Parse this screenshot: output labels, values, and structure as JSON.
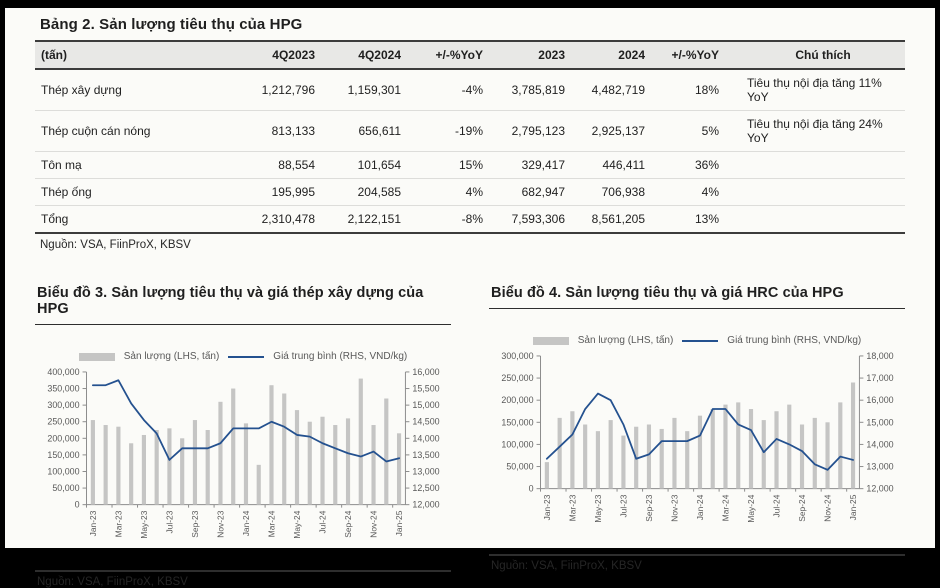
{
  "colors": {
    "bar": "#c5c5c4",
    "line": "#24518f",
    "axis": "#8c8c8c",
    "axis_text": "#595959",
    "page_bg": "#fbfbf8",
    "header_bg": "#e8e8e6"
  },
  "table_section": {
    "title": "Bảng 2. Sản lượng tiêu thụ của HPG",
    "source": "Nguồn: VSA, FiinProX, KBSV",
    "columns": [
      "(tấn)",
      "4Q2023",
      "4Q2024",
      "+/-%YoY",
      "2023",
      "2024",
      "+/-%YoY",
      "Chú thích"
    ],
    "rows": [
      [
        "Thép xây dựng",
        "1,212,796",
        "1,159,301",
        "-4%",
        "3,785,819",
        "4,482,719",
        "18%",
        "Tiêu thụ nội địa tăng 11% YoY"
      ],
      [
        "Thép cuộn cán nóng",
        "813,133",
        "656,611",
        "-19%",
        "2,795,123",
        "2,925,137",
        "5%",
        "Tiêu thụ nội địa tăng 24% YoY"
      ],
      [
        "Tôn mạ",
        "88,554",
        "101,654",
        "15%",
        "329,417",
        "446,411",
        "36%",
        ""
      ],
      [
        "Thép ống",
        "195,995",
        "204,585",
        "4%",
        "682,947",
        "706,938",
        "4%",
        ""
      ],
      [
        "Tổng",
        "2,310,478",
        "2,122,151",
        "-8%",
        "7,593,306",
        "8,561,205",
        "13%",
        ""
      ]
    ]
  },
  "chart_data": [
    {
      "type": "combo",
      "title": "Biểu đồ 3. Sản lượng tiêu thụ và giá thép xây dựng của HPG",
      "source": "Nguồn: VSA, FiinProX, KBSV",
      "legend_position": "top",
      "grid": false,
      "x": [
        "Jan-23",
        "Feb-23",
        "Mar-23",
        "Apr-23",
        "May-23",
        "Jun-23",
        "Jul-23",
        "Aug-23",
        "Sep-23",
        "Oct-23",
        "Nov-23",
        "Dec-23",
        "Jan-24",
        "Feb-24",
        "Mar-24",
        "Apr-24",
        "May-24",
        "Jun-24",
        "Jul-24",
        "Aug-24",
        "Sep-24",
        "Oct-24",
        "Nov-24",
        "Dec-24",
        "Jan-25"
      ],
      "x_tick_every": 2,
      "ylim_left": [
        0,
        400000
      ],
      "ytick_left": 50000,
      "ylim_right": [
        12000,
        16000
      ],
      "ytick_right": 500,
      "series": [
        {
          "name": "Sản lượng (LHS, tấn)",
          "type": "bar",
          "axis": "left",
          "values": [
            255000,
            240000,
            235000,
            185000,
            210000,
            225000,
            230000,
            200000,
            255000,
            225000,
            310000,
            350000,
            245000,
            120000,
            360000,
            335000,
            285000,
            250000,
            265000,
            240000,
            260000,
            380000,
            240000,
            320000,
            215000
          ]
        },
        {
          "name": "Giá trung bình (RHS, VND/kg)",
          "type": "line",
          "axis": "right",
          "values": [
            15600,
            15600,
            15750,
            15050,
            14550,
            14150,
            13350,
            13700,
            13700,
            13700,
            13850,
            14300,
            14300,
            14300,
            14500,
            14350,
            14100,
            14050,
            13850,
            13700,
            13550,
            13450,
            13600,
            13300,
            13400
          ]
        }
      ]
    },
    {
      "type": "combo",
      "title": "Biểu đồ 4. Sản lượng tiêu thụ và giá HRC của HPG",
      "source": "Nguồn: VSA, FiinProX, KBSV",
      "legend_position": "top",
      "grid": false,
      "x": [
        "Jan-23",
        "Feb-23",
        "Mar-23",
        "Apr-23",
        "May-23",
        "Jun-23",
        "Jul-23",
        "Aug-23",
        "Sep-23",
        "Oct-23",
        "Nov-23",
        "Dec-23",
        "Jan-24",
        "Feb-24",
        "Mar-24",
        "Apr-24",
        "May-24",
        "Jun-24",
        "Jul-24",
        "Aug-24",
        "Sep-24",
        "Oct-24",
        "Nov-24",
        "Dec-24",
        "Jan-25"
      ],
      "x_tick_every": 2,
      "ylim_left": [
        0,
        300000
      ],
      "ytick_left": 50000,
      "ylim_right": [
        12000,
        18000
      ],
      "ytick_right": 1000,
      "series": [
        {
          "name": "Sản lượng (LHS, tấn)",
          "type": "bar",
          "axis": "left",
          "values": [
            60000,
            160000,
            175000,
            145000,
            130000,
            155000,
            120000,
            140000,
            145000,
            135000,
            160000,
            130000,
            165000,
            180000,
            190000,
            195000,
            180000,
            155000,
            175000,
            190000,
            145000,
            160000,
            150000,
            195000,
            240000
          ]
        },
        {
          "name": "Giá trung bình (RHS, VND/kg)",
          "type": "line",
          "axis": "right",
          "values": [
            13350,
            13900,
            14450,
            15600,
            16300,
            16000,
            14900,
            13350,
            13550,
            14150,
            14150,
            14150,
            14400,
            15600,
            15600,
            14900,
            14650,
            13650,
            14250,
            14000,
            13700,
            13100,
            12850,
            13450,
            13300
          ]
        }
      ]
    }
  ]
}
